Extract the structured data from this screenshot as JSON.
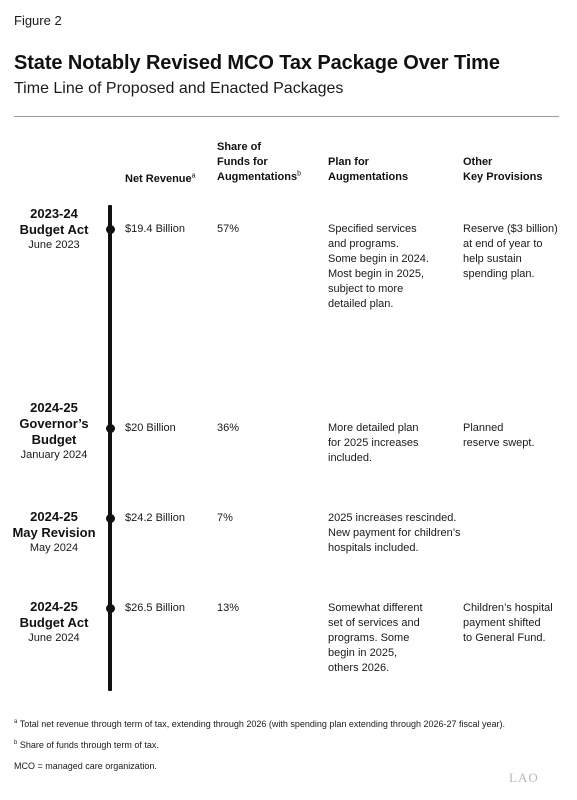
{
  "figure_label": "Figure 2",
  "title": "State Notably Revised MCO Tax Package Over Time",
  "subtitle": "Time Line of Proposed and Enacted Packages",
  "headers": {
    "net_revenue": "Net Revenue",
    "net_revenue_note": "a",
    "share": [
      "Share of",
      "Funds for",
      "Augmentations"
    ],
    "share_note": "b",
    "plan": [
      "Plan for",
      "Augmentations"
    ],
    "other": [
      "Other",
      "Key Provisions"
    ]
  },
  "rows": [
    {
      "label": [
        "2023-24",
        "Budget Act"
      ],
      "date": "June 2023",
      "net_revenue": "$19.4 Billion",
      "share": "57%",
      "plan": [
        "Specified services",
        "and programs.",
        "Some begin in 2024.",
        "Most begin in 2025,",
        "subject to more",
        "detailed plan."
      ],
      "other": [
        "Reserve ($3 billion)",
        "at end of year to",
        "help sustain",
        "spending plan."
      ]
    },
    {
      "label": [
        "2024-25",
        "Governor’s",
        "Budget"
      ],
      "date": "January 2024",
      "net_revenue": "$20 Billion",
      "share": "36%",
      "plan": [
        "More detailed plan",
        "for 2025 increases",
        "included."
      ],
      "other": [
        "Planned",
        "reserve swept."
      ]
    },
    {
      "label": [
        "2024-25",
        "May Revision"
      ],
      "date": "May 2024",
      "net_revenue": "$24.2 Billion",
      "share": "7%",
      "plan": [
        "2025 increases rescinded.",
        "New payment for children’s",
        "hospitals included."
      ],
      "other": []
    },
    {
      "label": [
        "2024-25",
        "Budget Act"
      ],
      "date": "June 2024",
      "net_revenue": "$26.5 Billion",
      "share": "13%",
      "plan": [
        "Somewhat different",
        "set of services and",
        "programs. Some",
        "begin in 2025,",
        "others 2026."
      ],
      "other": [
        "Children’s hospital",
        "payment shifted",
        "to General Fund."
      ]
    }
  ],
  "footnotes": {
    "a_marker": "a",
    "a_text": "Total net revenue through term of tax, extending through 2026 (with spending plan extending through 2026-27 fiscal year).",
    "b_marker": "b",
    "b_text": "Share of funds through term of tax.",
    "mco": "MCO = managed care organization."
  },
  "logo": "LAO"
}
